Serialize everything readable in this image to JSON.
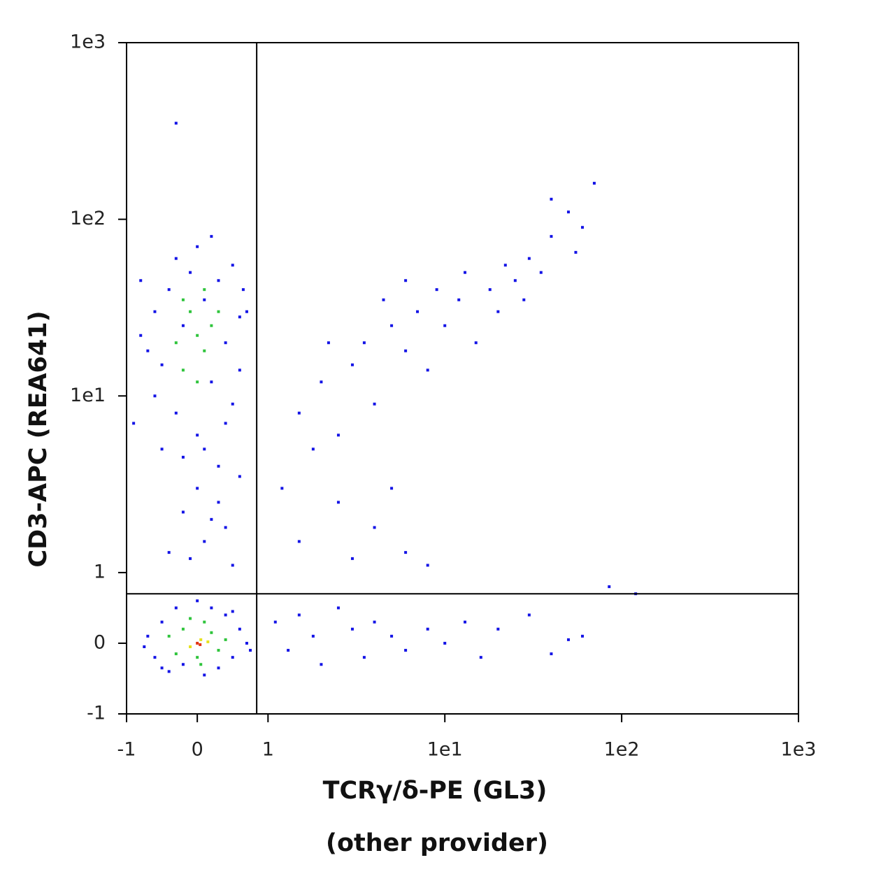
{
  "chart_data": {
    "type": "scatter",
    "xlabel": "TCRγ/δ-PE (GL3)",
    "xlabel_note": "(other provider)",
    "ylabel": "CD3-APC (REA641)",
    "xscale": "biexponential",
    "yscale": "biexponential",
    "xlim": [
      -1,
      1000
    ],
    "ylim": [
      -1,
      1000
    ],
    "xticks": [
      -1,
      0,
      1,
      {
        "value": 10,
        "label": "1e1"
      },
      {
        "value": 100,
        "label": "1e2"
      },
      {
        "value": 1000,
        "label": "1e3"
      }
    ],
    "yticks": [
      -1,
      0,
      1,
      {
        "value": 10,
        "label": "1e1"
      },
      {
        "value": 100,
        "label": "1e2"
      },
      {
        "value": 1000,
        "label": "1e3"
      }
    ],
    "quadrant_x": 0.84,
    "quadrant_y": 0.7,
    "series": [
      {
        "color": "#1414e6",
        "x": [
          -0.6,
          -0.5,
          -0.4,
          -0.3,
          -0.2,
          -0.1,
          0.0,
          0.1,
          0.2,
          0.3,
          0.4,
          0.5,
          0.6,
          -0.7,
          -0.5,
          0.3,
          0.0,
          0.2,
          -0.3,
          0.5,
          0.6,
          -0.6,
          0.1,
          -0.2,
          0.4,
          0.7,
          -0.8,
          0.65,
          -0.7,
          -0.6,
          -0.5,
          -0.4,
          -0.3,
          -0.2,
          0.0,
          0.1,
          0.2,
          0.3,
          0.4,
          0.5,
          0.6,
          0.7,
          0.75,
          -0.75,
          0.5,
          -0.5,
          0.1,
          0.2,
          -0.1,
          0.3,
          0.0,
          0.5,
          -0.2,
          0.4,
          0.6,
          -0.4,
          1.2,
          1.5,
          2,
          2.5,
          3,
          3.5,
          4,
          5,
          6,
          7,
          8,
          10,
          12,
          15,
          18,
          20,
          25,
          30,
          35,
          40,
          40,
          50,
          60,
          70,
          55,
          28,
          22,
          13,
          9,
          4.5,
          1.8,
          2.2,
          6,
          1.1,
          1.3,
          1.5,
          1.8,
          2,
          2.5,
          3,
          3.5,
          4,
          5,
          6,
          8,
          10,
          13,
          16,
          20,
          30,
          40,
          50,
          60,
          85,
          120,
          1.5,
          2.5,
          4,
          6,
          8,
          3,
          5,
          -0.3,
          -0.8,
          -0.9
        ],
        "values": [
          30,
          15,
          40,
          8,
          25,
          50,
          6,
          35,
          12,
          45,
          20,
          9,
          28,
          18,
          5,
          4,
          70,
          80,
          60,
          55,
          14,
          10,
          5,
          4.5,
          7,
          30,
          22,
          40,
          0.1,
          -0.2,
          0.3,
          -0.4,
          0.5,
          -0.3,
          0.6,
          -0.45,
          0.5,
          -0.35,
          0.4,
          -0.2,
          0.2,
          0,
          -0.1,
          -0.05,
          0.45,
          -0.35,
          1.5,
          2,
          1.2,
          2.5,
          3,
          1.1,
          2.2,
          1.8,
          3.5,
          1.3,
          3,
          8,
          12,
          6,
          15,
          20,
          9,
          25,
          18,
          30,
          14,
          25,
          35,
          20,
          40,
          30,
          45,
          60,
          50,
          80,
          130,
          110,
          90,
          160,
          65,
          35,
          55,
          50,
          40,
          35,
          5,
          20,
          45,
          0.3,
          -0.1,
          0.4,
          0.1,
          -0.3,
          0.5,
          0.2,
          -0.2,
          0.3,
          0.1,
          -0.1,
          0.2,
          0.0,
          0.3,
          -0.2,
          0.2,
          0.4,
          -0.15,
          0.05,
          0.1,
          0.8,
          0.7,
          1.5,
          2.5,
          1.8,
          1.3,
          1.1,
          1.2,
          3,
          350,
          45,
          7
        ]
      },
      {
        "color": "#2fc43c",
        "x": [
          -0.3,
          -0.1,
          0.1,
          0.2,
          0.0,
          -0.2,
          0.3,
          0.0,
          0.1,
          -0.2,
          -0.4,
          -0.2,
          0,
          0.2,
          0.3,
          -0.3,
          0.1,
          0.4,
          -0.1,
          0.05
        ],
        "values": [
          20,
          30,
          18,
          25,
          12,
          14,
          30,
          22,
          40,
          35,
          0.1,
          0.2,
          -0.2,
          0.15,
          -0.1,
          -0.15,
          0.3,
          0.05,
          0.35,
          -0.3
        ]
      },
      {
        "color": "#e6e21e",
        "x": [
          0.05,
          -0.1,
          0.15
        ],
        "values": [
          0.05,
          -0.05,
          0.02
        ]
      },
      {
        "color": "#e23414",
        "x": [
          0,
          0.04
        ],
        "values": [
          0,
          -0.02
        ]
      }
    ]
  }
}
